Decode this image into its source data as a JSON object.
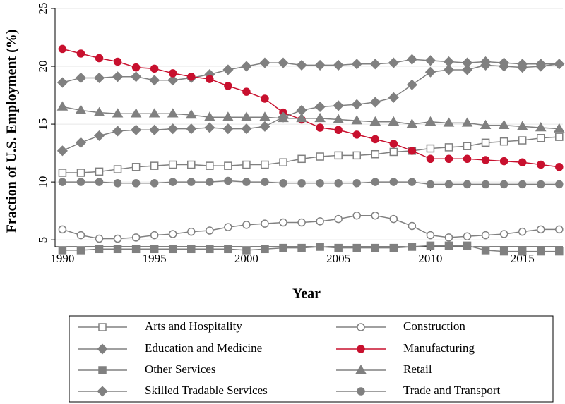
{
  "chart_data": {
    "type": "line",
    "x_label": "Year",
    "y_label": "Fraction of U.S. Employment (%)",
    "x": [
      1990,
      1991,
      1992,
      1993,
      1994,
      1995,
      1996,
      1997,
      1998,
      1999,
      2000,
      2001,
      2002,
      2003,
      2004,
      2005,
      2006,
      2007,
      2008,
      2009,
      2010,
      2011,
      2012,
      2013,
      2014,
      2015,
      2016,
      2017
    ],
    "xlim": [
      1989.6,
      2017.2
    ],
    "xticks": [
      1990,
      1995,
      2000,
      2005,
      2010,
      2015
    ],
    "ylim": [
      4.4,
      25
    ],
    "yticks": [
      5,
      10,
      15,
      20,
      25
    ],
    "grid": true,
    "legend_columns": 2,
    "series": [
      {
        "name": "Arts and Hospitality",
        "color": "#808080",
        "marker": "square-open",
        "values": [
          10.8,
          10.8,
          10.9,
          11.1,
          11.3,
          11.4,
          11.5,
          11.5,
          11.4,
          11.4,
          11.5,
          11.5,
          11.7,
          12.0,
          12.2,
          12.3,
          12.3,
          12.4,
          12.6,
          12.7,
          12.9,
          13.0,
          13.1,
          13.4,
          13.5,
          13.6,
          13.8,
          13.9
        ]
      },
      {
        "name": "Construction",
        "color": "#808080",
        "marker": "circle-open",
        "values": [
          5.9,
          5.4,
          5.1,
          5.1,
          5.2,
          5.4,
          5.5,
          5.7,
          5.8,
          6.1,
          6.3,
          6.4,
          6.5,
          6.5,
          6.6,
          6.8,
          7.1,
          7.1,
          6.8,
          6.2,
          5.4,
          5.2,
          5.3,
          5.4,
          5.5,
          5.7,
          5.9,
          5.9
        ]
      },
      {
        "name": "Education and Medicine",
        "color": "#808080",
        "marker": "diamond",
        "values": [
          18.6,
          19.0,
          19.0,
          19.1,
          19.1,
          18.8,
          18.8,
          19.0,
          19.3,
          19.7,
          20.0,
          20.3,
          20.3,
          20.1,
          20.1,
          20.1,
          20.2,
          20.2,
          20.3,
          20.6,
          20.5,
          20.4,
          20.3,
          20.4,
          20.3,
          20.2,
          20.2,
          20.2
        ]
      },
      {
        "name": "Manufacturing",
        "color": "#c8102e",
        "marker": "circle",
        "values": [
          21.5,
          21.1,
          20.7,
          20.4,
          19.9,
          19.8,
          19.4,
          19.1,
          18.9,
          18.3,
          17.8,
          17.2,
          16.0,
          15.4,
          14.7,
          14.5,
          14.1,
          13.7,
          13.3,
          12.7,
          12.0,
          12.0,
          12.0,
          11.9,
          11.8,
          11.7,
          11.5,
          11.3
        ]
      },
      {
        "name": "Other Services",
        "color": "#808080",
        "marker": "square",
        "values": [
          4.1,
          4.1,
          4.2,
          4.2,
          4.2,
          4.2,
          4.2,
          4.2,
          4.2,
          4.2,
          4.1,
          4.2,
          4.3,
          4.3,
          4.4,
          4.3,
          4.3,
          4.3,
          4.3,
          4.4,
          4.5,
          4.5,
          4.5,
          4.1,
          4.0,
          4.0,
          4.0,
          4.0
        ]
      },
      {
        "name": "Retail",
        "color": "#808080",
        "marker": "triangle",
        "values": [
          16.5,
          16.2,
          16.0,
          15.9,
          15.9,
          15.9,
          15.9,
          15.8,
          15.6,
          15.6,
          15.6,
          15.6,
          15.5,
          15.5,
          15.5,
          15.4,
          15.3,
          15.2,
          15.2,
          15.0,
          15.2,
          15.1,
          15.1,
          14.9,
          14.9,
          14.8,
          14.7,
          14.6
        ]
      },
      {
        "name": "Skilled Tradable Services",
        "color": "#808080",
        "marker": "diamond",
        "values": [
          12.7,
          13.4,
          14.0,
          14.4,
          14.5,
          14.5,
          14.6,
          14.6,
          14.7,
          14.6,
          14.6,
          14.8,
          15.6,
          16.2,
          16.5,
          16.6,
          16.7,
          16.9,
          17.3,
          18.4,
          19.5,
          19.7,
          19.7,
          20.1,
          20.0,
          19.9,
          20.0,
          20.2
        ]
      },
      {
        "name": "Trade and Transport",
        "color": "#808080",
        "marker": "circle",
        "values": [
          10.0,
          10.0,
          10.0,
          9.9,
          9.9,
          9.9,
          10.0,
          10.0,
          10.0,
          10.1,
          10.0,
          10.0,
          9.9,
          9.9,
          9.9,
          9.9,
          9.9,
          10.0,
          10.0,
          10.0,
          9.8,
          9.8,
          9.8,
          9.8,
          9.8,
          9.8,
          9.8,
          9.8
        ]
      }
    ]
  }
}
